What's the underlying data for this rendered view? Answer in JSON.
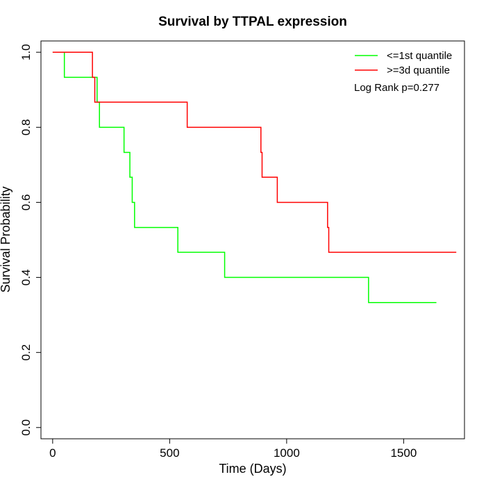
{
  "chart_data": {
    "type": "line",
    "title": "Survival by TTPAL expression",
    "xlabel": "Time (Days)",
    "ylabel": "Survival Probability",
    "xlim": [
      -50,
      1760
    ],
    "ylim": [
      -0.03,
      1.03
    ],
    "x_ticks": [
      0,
      500,
      1000,
      1500
    ],
    "y_ticks": [
      0.0,
      0.2,
      0.4,
      0.6,
      0.8,
      1.0
    ],
    "x_tick_labels": [
      "0",
      "500",
      "1000",
      "1500"
    ],
    "y_tick_labels": [
      "0.0",
      "0.2",
      "0.4",
      "0.6",
      "0.8",
      "1.0"
    ],
    "grid": false,
    "legend_position": "top-right",
    "annotation": "Log Rank p=0.277",
    "series": [
      {
        "name": "<=1st quantile",
        "color": "#00ff00",
        "step": true,
        "x": [
          0,
          50,
          190,
          200,
          305,
          330,
          340,
          350,
          535,
          735,
          1350,
          1640
        ],
        "y": [
          1.0,
          0.933,
          0.867,
          0.8,
          0.733,
          0.667,
          0.6,
          0.533,
          0.467,
          0.4,
          0.333,
          0.333
        ]
      },
      {
        "name": ">=3d quantile",
        "color": "#ff0000",
        "step": true,
        "x": [
          0,
          170,
          180,
          575,
          890,
          895,
          960,
          1175,
          1180,
          1725
        ],
        "y": [
          1.0,
          0.933,
          0.867,
          0.8,
          0.733,
          0.667,
          0.6,
          0.533,
          0.467,
          0.467
        ]
      }
    ]
  }
}
